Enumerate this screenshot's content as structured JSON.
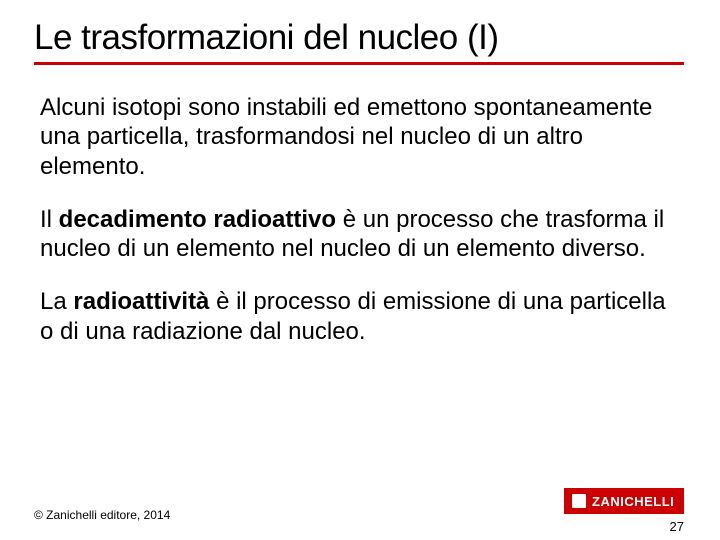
{
  "title": "Le trasformazioni del nucleo (I)",
  "paragraphs": {
    "p1": "Alcuni isotopi sono instabili ed emettono spontaneamente una particella, trasformandosi nel nucleo di un altro elemento.",
    "p2_pre": "Il ",
    "p2_bold": "decadimento radioattivo",
    "p2_post": " è un processo che trasforma il nucleo di un elemento nel nucleo di un elemento diverso.",
    "p3_pre": "La ",
    "p3_bold": "radioattività",
    "p3_post": " è il processo di emissione di una particella o di una radiazione dal nucleo."
  },
  "footer": "© Zanichelli editore, 2014",
  "logo": "ZANICHELLI",
  "page_number": "27",
  "colors": {
    "accent": "#cc0000",
    "text": "#000000",
    "background": "#ffffff",
    "logo_text": "#ffffff"
  },
  "typography": {
    "title_fontsize": 35,
    "body_fontsize": 24,
    "footer_fontsize": 12,
    "logo_fontsize": 13
  }
}
